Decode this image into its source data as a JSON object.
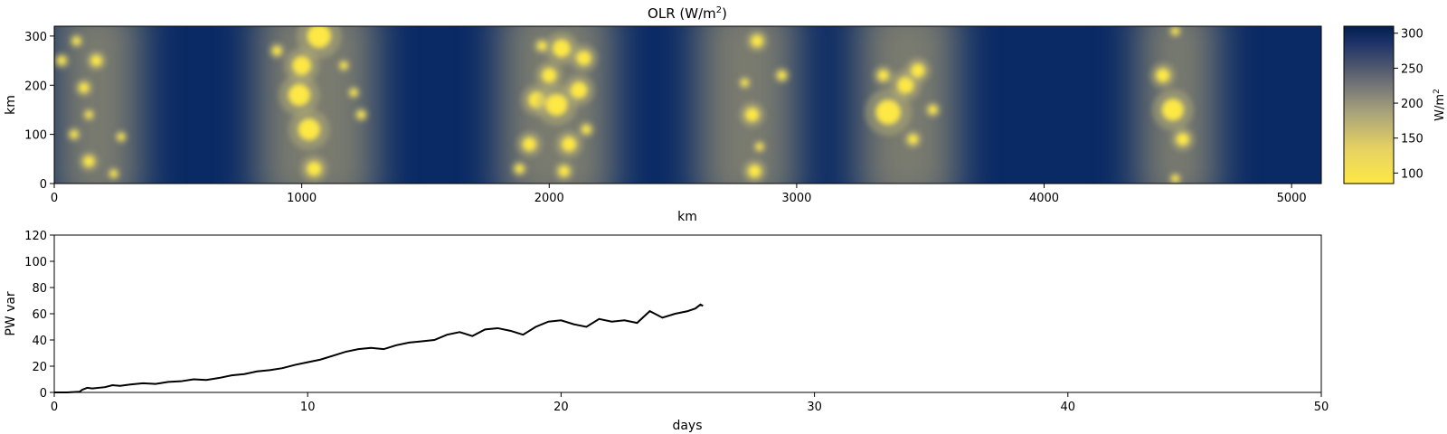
{
  "chart_data": [
    {
      "type": "heatmap",
      "title_main": "OLR (W/m",
      "title_sup": "2",
      "title_close": ")",
      "xlabel": "km",
      "ylabel": "km",
      "xlim": [
        0,
        5120
      ],
      "ylim": [
        0,
        320
      ],
      "xticks": [
        0,
        1000,
        2000,
        3000,
        4000,
        5000
      ],
      "yticks": [
        0,
        100,
        200,
        300
      ],
      "colorbar": {
        "label_main": "W/m",
        "label_sup": "2",
        "range": [
          85,
          310
        ],
        "ticks": [
          100,
          150,
          200,
          250,
          300
        ],
        "colormap": "cividis_r",
        "low_color": "#fde845",
        "mid_color": "#7c7b78",
        "high_color": "#00204d"
      },
      "convective_bands_km": [
        {
          "x_range": [
            0,
            350
          ]
        },
        {
          "x_range": [
            820,
            1300
          ]
        },
        {
          "x_range": [
            1800,
            2260
          ]
        },
        {
          "x_range": [
            2600,
            3000
          ]
        },
        {
          "x_range": [
            3250,
            3650
          ]
        },
        {
          "x_range": [
            4380,
            4700
          ]
        }
      ],
      "cells": [
        {
          "x": 30,
          "y": 250,
          "r": 18
        },
        {
          "x": 90,
          "y": 290,
          "r": 16
        },
        {
          "x": 170,
          "y": 250,
          "r": 22
        },
        {
          "x": 120,
          "y": 195,
          "r": 20
        },
        {
          "x": 140,
          "y": 140,
          "r": 12
        },
        {
          "x": 80,
          "y": 100,
          "r": 16
        },
        {
          "x": 140,
          "y": 45,
          "r": 22
        },
        {
          "x": 270,
          "y": 95,
          "r": 6
        },
        {
          "x": 240,
          "y": 20,
          "r": 14
        },
        {
          "x": 1070,
          "y": 300,
          "r": 48
        },
        {
          "x": 1000,
          "y": 240,
          "r": 38
        },
        {
          "x": 990,
          "y": 180,
          "r": 44
        },
        {
          "x": 1030,
          "y": 110,
          "r": 44
        },
        {
          "x": 1050,
          "y": 30,
          "r": 30
        },
        {
          "x": 1210,
          "y": 185,
          "r": 10
        },
        {
          "x": 1240,
          "y": 140,
          "r": 16
        },
        {
          "x": 1170,
          "y": 240,
          "r": 14
        },
        {
          "x": 900,
          "y": 270,
          "r": 18
        },
        {
          "x": 2050,
          "y": 275,
          "r": 36
        },
        {
          "x": 2000,
          "y": 220,
          "r": 30
        },
        {
          "x": 1970,
          "y": 280,
          "r": 18
        },
        {
          "x": 2140,
          "y": 255,
          "r": 30
        },
        {
          "x": 1950,
          "y": 170,
          "r": 34
        },
        {
          "x": 2030,
          "y": 160,
          "r": 44
        },
        {
          "x": 2120,
          "y": 190,
          "r": 34
        },
        {
          "x": 1920,
          "y": 80,
          "r": 28
        },
        {
          "x": 2080,
          "y": 80,
          "r": 30
        },
        {
          "x": 2060,
          "y": 25,
          "r": 22
        },
        {
          "x": 1880,
          "y": 30,
          "r": 18
        },
        {
          "x": 2150,
          "y": 110,
          "r": 18
        },
        {
          "x": 2790,
          "y": 205,
          "r": 12
        },
        {
          "x": 2850,
          "y": 75,
          "r": 14
        },
        {
          "x": 2820,
          "y": 140,
          "r": 28
        },
        {
          "x": 2840,
          "y": 290,
          "r": 24
        },
        {
          "x": 2830,
          "y": 25,
          "r": 26
        },
        {
          "x": 2940,
          "y": 220,
          "r": 18
        },
        {
          "x": 3370,
          "y": 145,
          "r": 50
        },
        {
          "x": 3440,
          "y": 200,
          "r": 34
        },
        {
          "x": 3490,
          "y": 230,
          "r": 28
        },
        {
          "x": 3350,
          "y": 220,
          "r": 22
        },
        {
          "x": 3550,
          "y": 150,
          "r": 18
        },
        {
          "x": 3470,
          "y": 90,
          "r": 20
        },
        {
          "x": 4520,
          "y": 150,
          "r": 44
        },
        {
          "x": 4560,
          "y": 90,
          "r": 26
        },
        {
          "x": 4480,
          "y": 220,
          "r": 28
        },
        {
          "x": 4530,
          "y": 310,
          "r": 14
        },
        {
          "x": 4530,
          "y": 10,
          "r": 14
        }
      ]
    },
    {
      "type": "line",
      "xlabel": "days",
      "ylabel": "PW var",
      "xlim": [
        0,
        50
      ],
      "ylim": [
        0,
        120
      ],
      "xticks": [
        0,
        10,
        20,
        30,
        40,
        50
      ],
      "yticks": [
        0,
        20,
        40,
        60,
        80,
        100,
        120
      ],
      "line_color": "#000000",
      "series": [
        {
          "x": [
            0,
            0.5,
            1.0,
            1.1,
            1.3,
            1.5,
            2.0,
            2.3,
            2.6,
            3.0,
            3.5,
            4.0,
            4.5,
            5.0,
            5.5,
            6.0,
            6.5,
            7.0,
            7.5,
            8.0,
            8.5,
            9.0,
            9.5,
            10.0,
            10.5,
            11.0,
            11.5,
            12.0,
            12.5,
            13.0,
            13.5,
            14.0,
            14.5,
            15.0,
            15.5,
            16.0,
            16.5,
            17.0,
            17.5,
            18.0,
            18.5,
            19.0,
            19.5,
            20.0,
            20.5,
            21.0,
            21.5,
            22.0,
            22.5,
            23.0,
            23.5,
            24.0,
            24.5,
            25.0,
            25.3,
            25.5,
            25.6
          ],
          "y": [
            0,
            0,
            0.5,
            2,
            3.5,
            3,
            4,
            5.5,
            5,
            6,
            7,
            6.5,
            8,
            8.5,
            10,
            9.5,
            11,
            13,
            14,
            16,
            17,
            18.5,
            21,
            23,
            25,
            28,
            31,
            33,
            34,
            33,
            36,
            38,
            39,
            40,
            44,
            46,
            43,
            48,
            49,
            47,
            44,
            50,
            54,
            55,
            52,
            50,
            56,
            54,
            55,
            53,
            62,
            57,
            60,
            62,
            64,
            67,
            66
          ]
        }
      ]
    }
  ]
}
